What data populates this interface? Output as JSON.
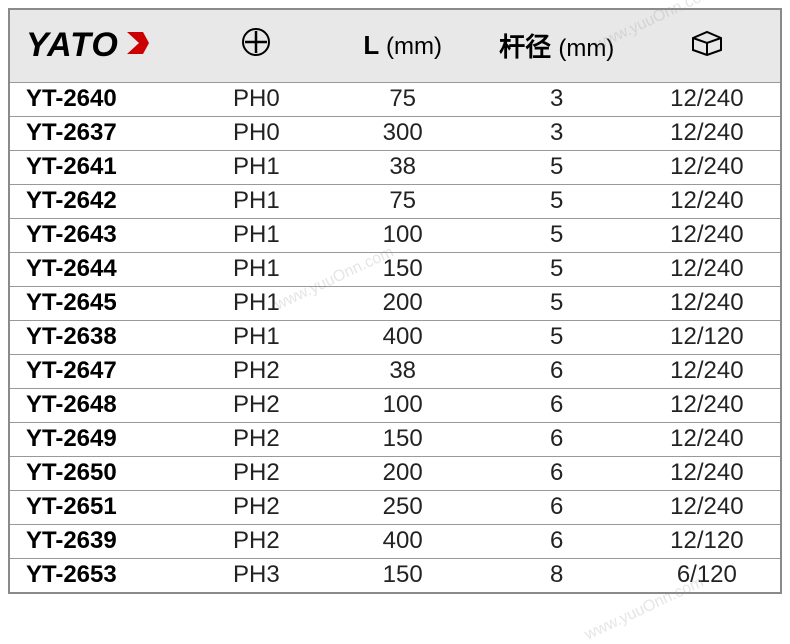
{
  "brand": "YATO",
  "columns": {
    "length_label": "L",
    "length_unit": "(mm)",
    "diameter_label": "杆径",
    "diameter_unit": "(mm)"
  },
  "rows": [
    {
      "model": "YT-2640",
      "ph": "PH0",
      "length": "75",
      "diameter": "3",
      "pack": "12/240"
    },
    {
      "model": "YT-2637",
      "ph": "PH0",
      "length": "300",
      "diameter": "3",
      "pack": "12/240"
    },
    {
      "model": "YT-2641",
      "ph": "PH1",
      "length": "38",
      "diameter": "5",
      "pack": "12/240"
    },
    {
      "model": "YT-2642",
      "ph": "PH1",
      "length": "75",
      "diameter": "5",
      "pack": "12/240"
    },
    {
      "model": "YT-2643",
      "ph": "PH1",
      "length": "100",
      "diameter": "5",
      "pack": "12/240"
    },
    {
      "model": "YT-2644",
      "ph": "PH1",
      "length": "150",
      "diameter": "5",
      "pack": "12/240"
    },
    {
      "model": "YT-2645",
      "ph": "PH1",
      "length": "200",
      "diameter": "5",
      "pack": "12/240"
    },
    {
      "model": "YT-2638",
      "ph": "PH1",
      "length": "400",
      "diameter": "5",
      "pack": "12/120"
    },
    {
      "model": "YT-2647",
      "ph": "PH2",
      "length": "38",
      "diameter": "6",
      "pack": "12/240"
    },
    {
      "model": "YT-2648",
      "ph": "PH2",
      "length": "100",
      "diameter": "6",
      "pack": "12/240"
    },
    {
      "model": "YT-2649",
      "ph": "PH2",
      "length": "150",
      "diameter": "6",
      "pack": "12/240"
    },
    {
      "model": "YT-2650",
      "ph": "PH2",
      "length": "200",
      "diameter": "6",
      "pack": "12/240"
    },
    {
      "model": "YT-2651",
      "ph": "PH2",
      "length": "250",
      "diameter": "6",
      "pack": "12/240"
    },
    {
      "model": "YT-2639",
      "ph": "PH2",
      "length": "400",
      "diameter": "6",
      "pack": "12/120"
    },
    {
      "model": "YT-2653",
      "ph": "PH3",
      "length": "150",
      "diameter": "8",
      "pack": "6/120"
    }
  ],
  "watermark": "www.yuuOnn.com",
  "colors": {
    "header_bg": "#e8e8e8",
    "border": "#8a8a8a",
    "row_border": "#999999",
    "text": "#000000",
    "body_text": "#222222"
  }
}
